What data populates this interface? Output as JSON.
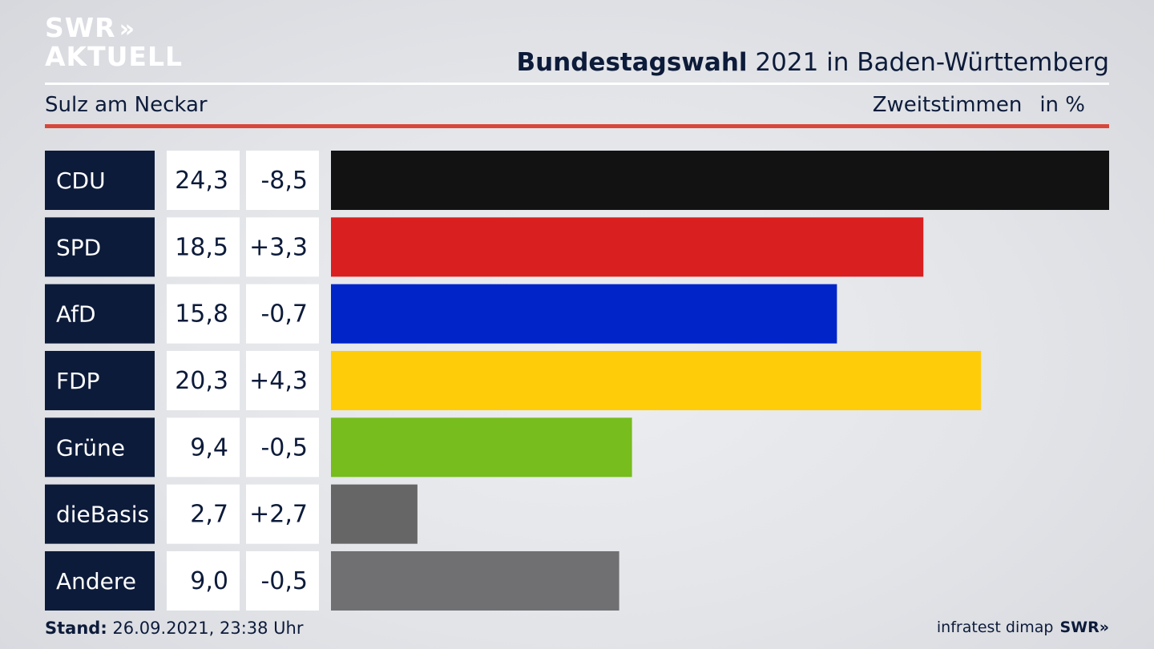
{
  "branding": {
    "logo_line1": "SWR",
    "logo_arrows": "»",
    "logo_line2": "AKTUELL",
    "footer_logo": "SWR»"
  },
  "header": {
    "title_bold": "Bundestagswahl",
    "title_rest": " 2021 in Baden-Württemberg"
  },
  "subheader": {
    "location": "Sulz am Neckar",
    "measure": "Zweitstimmen",
    "unit": "in %"
  },
  "footer": {
    "stand_label": "Stand:",
    "stand_value": " 26.09.2021, 23:38 Uhr",
    "source": "infratest dimap"
  },
  "chart_data": {
    "type": "bar",
    "orientation": "horizontal",
    "categories": [
      "CDU",
      "SPD",
      "AfD",
      "FDP",
      "Grüne",
      "dieBasis",
      "Andere"
    ],
    "values": [
      24.3,
      18.5,
      15.8,
      20.3,
      9.4,
      2.7,
      9.0
    ],
    "value_labels": [
      "24,3",
      "18,5",
      "15,8",
      "20,3",
      "9,4",
      "2,7",
      "9,0"
    ],
    "change_labels": [
      "-8,5",
      "+3,3",
      "-0,7",
      "+4,3",
      "-0,5",
      "+2,7",
      "-0,5"
    ],
    "colors": [
      "#121212",
      "#d91f1f",
      "#0024c8",
      "#ffcc0a",
      "#76bd1d",
      "#666666",
      "#707072"
    ],
    "xlim": [
      0,
      24.3
    ]
  }
}
